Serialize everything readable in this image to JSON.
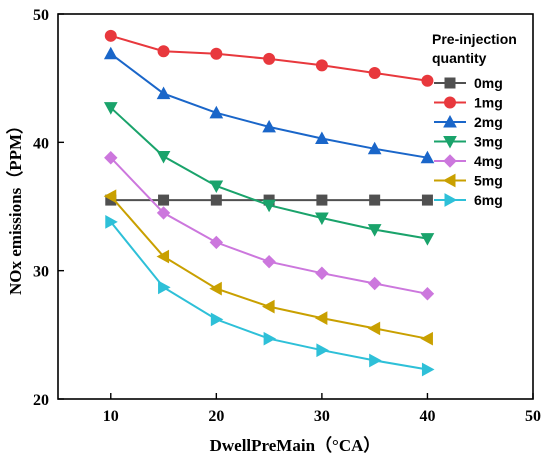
{
  "chart_data": {
    "type": "line",
    "xlabel": "DwellPreMain（°CA）",
    "ylabel": "NOx emissions（PPM）",
    "xlim": [
      5,
      50
    ],
    "ylim": [
      20,
      50
    ],
    "xticks": [
      "10",
      "20",
      "30",
      "40",
      "50"
    ],
    "yticks": [
      "20",
      "30",
      "40",
      "50"
    ],
    "x": [
      10,
      15,
      20,
      25,
      30,
      35,
      40
    ],
    "legend_title": "Pre-injection quantity",
    "legend_position": "top-right",
    "grid": false,
    "series": [
      {
        "name": "0mg",
        "color": "#505050",
        "marker": "square",
        "values": [
          35.5,
          35.5,
          35.5,
          35.5,
          35.5,
          35.5,
          35.5
        ]
      },
      {
        "name": "1mg",
        "color": "#e8383d",
        "marker": "circle",
        "values": [
          48.3,
          47.1,
          46.9,
          46.5,
          46.0,
          45.4,
          44.8
        ]
      },
      {
        "name": "2mg",
        "color": "#1a66c9",
        "marker": "triangle-up",
        "values": [
          46.9,
          43.8,
          42.3,
          41.2,
          40.3,
          39.5,
          38.8
        ]
      },
      {
        "name": "3mg",
        "color": "#1aa36b",
        "marker": "triangle-down",
        "values": [
          42.7,
          38.9,
          36.6,
          35.1,
          34.1,
          33.2,
          32.5
        ]
      },
      {
        "name": "4mg",
        "color": "#cc77dd",
        "marker": "diamond",
        "values": [
          38.8,
          34.5,
          32.2,
          30.7,
          29.8,
          29.0,
          28.2
        ]
      },
      {
        "name": "5mg",
        "color": "#c9a000",
        "marker": "triangle-left",
        "values": [
          35.8,
          31.1,
          28.6,
          27.2,
          26.3,
          25.5,
          24.7
        ]
      },
      {
        "name": "6mg",
        "color": "#2ec0d8",
        "marker": "triangle-right",
        "values": [
          33.8,
          28.7,
          26.2,
          24.7,
          23.8,
          23.0,
          22.3
        ]
      }
    ]
  }
}
